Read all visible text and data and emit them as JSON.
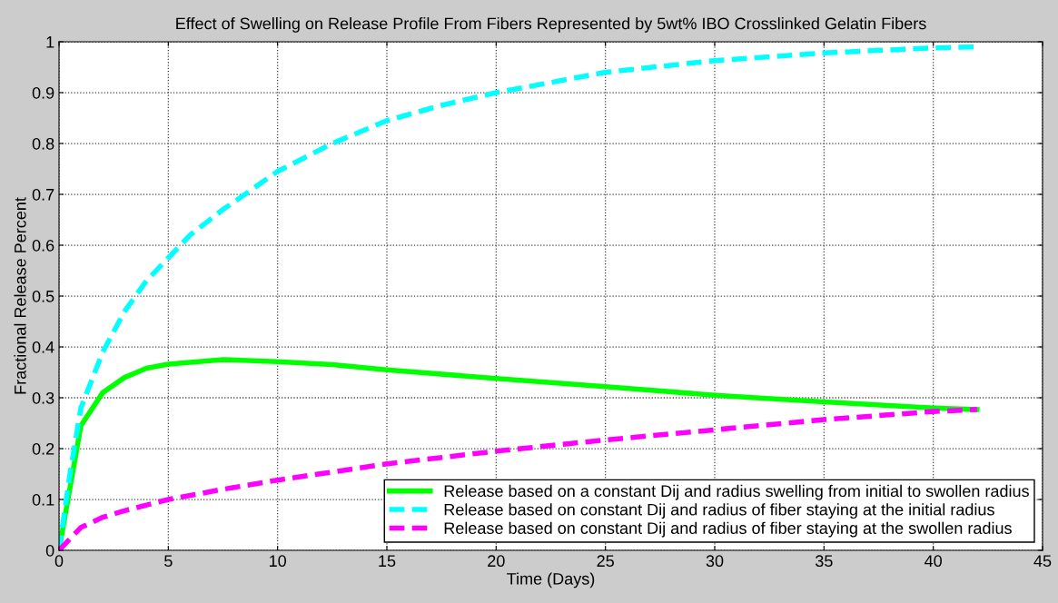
{
  "chart_data": {
    "type": "line",
    "title": "Effect of Swelling on Release Profile From Fibers Represented by 5wt% IBO Crosslinked Gelatin Fibers",
    "xlabel": "Time (Days)",
    "ylabel": "Fractional Release Percent",
    "xlim": [
      0,
      45
    ],
    "xticks": [
      0,
      5,
      10,
      15,
      20,
      25,
      30,
      35,
      40,
      45
    ],
    "ylim": [
      0,
      1
    ],
    "yticks": [
      0,
      0.1,
      0.2,
      0.3,
      0.4,
      0.5,
      0.6,
      0.7,
      0.8,
      0.9,
      1
    ],
    "grid": true,
    "legend": "bottom right",
    "series": [
      {
        "name": "Release based on a constant Dij and radius swelling from initial to swollen radius",
        "color": "#00ff00",
        "line_style": "solid",
        "x": [
          0,
          1,
          2,
          3,
          4,
          5,
          7.5,
          10,
          12.5,
          15,
          20,
          25,
          30,
          35,
          40,
          42
        ],
        "values": [
          0,
          0.245,
          0.31,
          0.34,
          0.358,
          0.366,
          0.375,
          0.371,
          0.365,
          0.355,
          0.338,
          0.322,
          0.305,
          0.292,
          0.28,
          0.277
        ]
      },
      {
        "name": "Release based on constant Dij and radius of fiber staying at the initial radius",
        "color": "#00ffff",
        "line_style": "dashed",
        "x": [
          0,
          0.5,
          1,
          2,
          3,
          4,
          5,
          6,
          7.5,
          10,
          12.5,
          15,
          17.5,
          20,
          25,
          30,
          35,
          40,
          42
        ],
        "values": [
          0,
          0.15,
          0.28,
          0.39,
          0.47,
          0.53,
          0.575,
          0.62,
          0.67,
          0.745,
          0.8,
          0.845,
          0.875,
          0.9,
          0.94,
          0.963,
          0.978,
          0.988,
          0.99
        ]
      },
      {
        "name": "Release based on constant Dij and radius of fiber staying at the swollen radius",
        "color": "#ff00ff",
        "line_style": "dashed",
        "x": [
          0,
          1,
          2,
          3,
          5,
          7.5,
          10,
          15,
          20,
          25,
          30,
          35,
          40,
          42
        ],
        "values": [
          0,
          0.045,
          0.065,
          0.078,
          0.1,
          0.12,
          0.138,
          0.17,
          0.195,
          0.217,
          0.237,
          0.257,
          0.273,
          0.277
        ]
      }
    ]
  }
}
